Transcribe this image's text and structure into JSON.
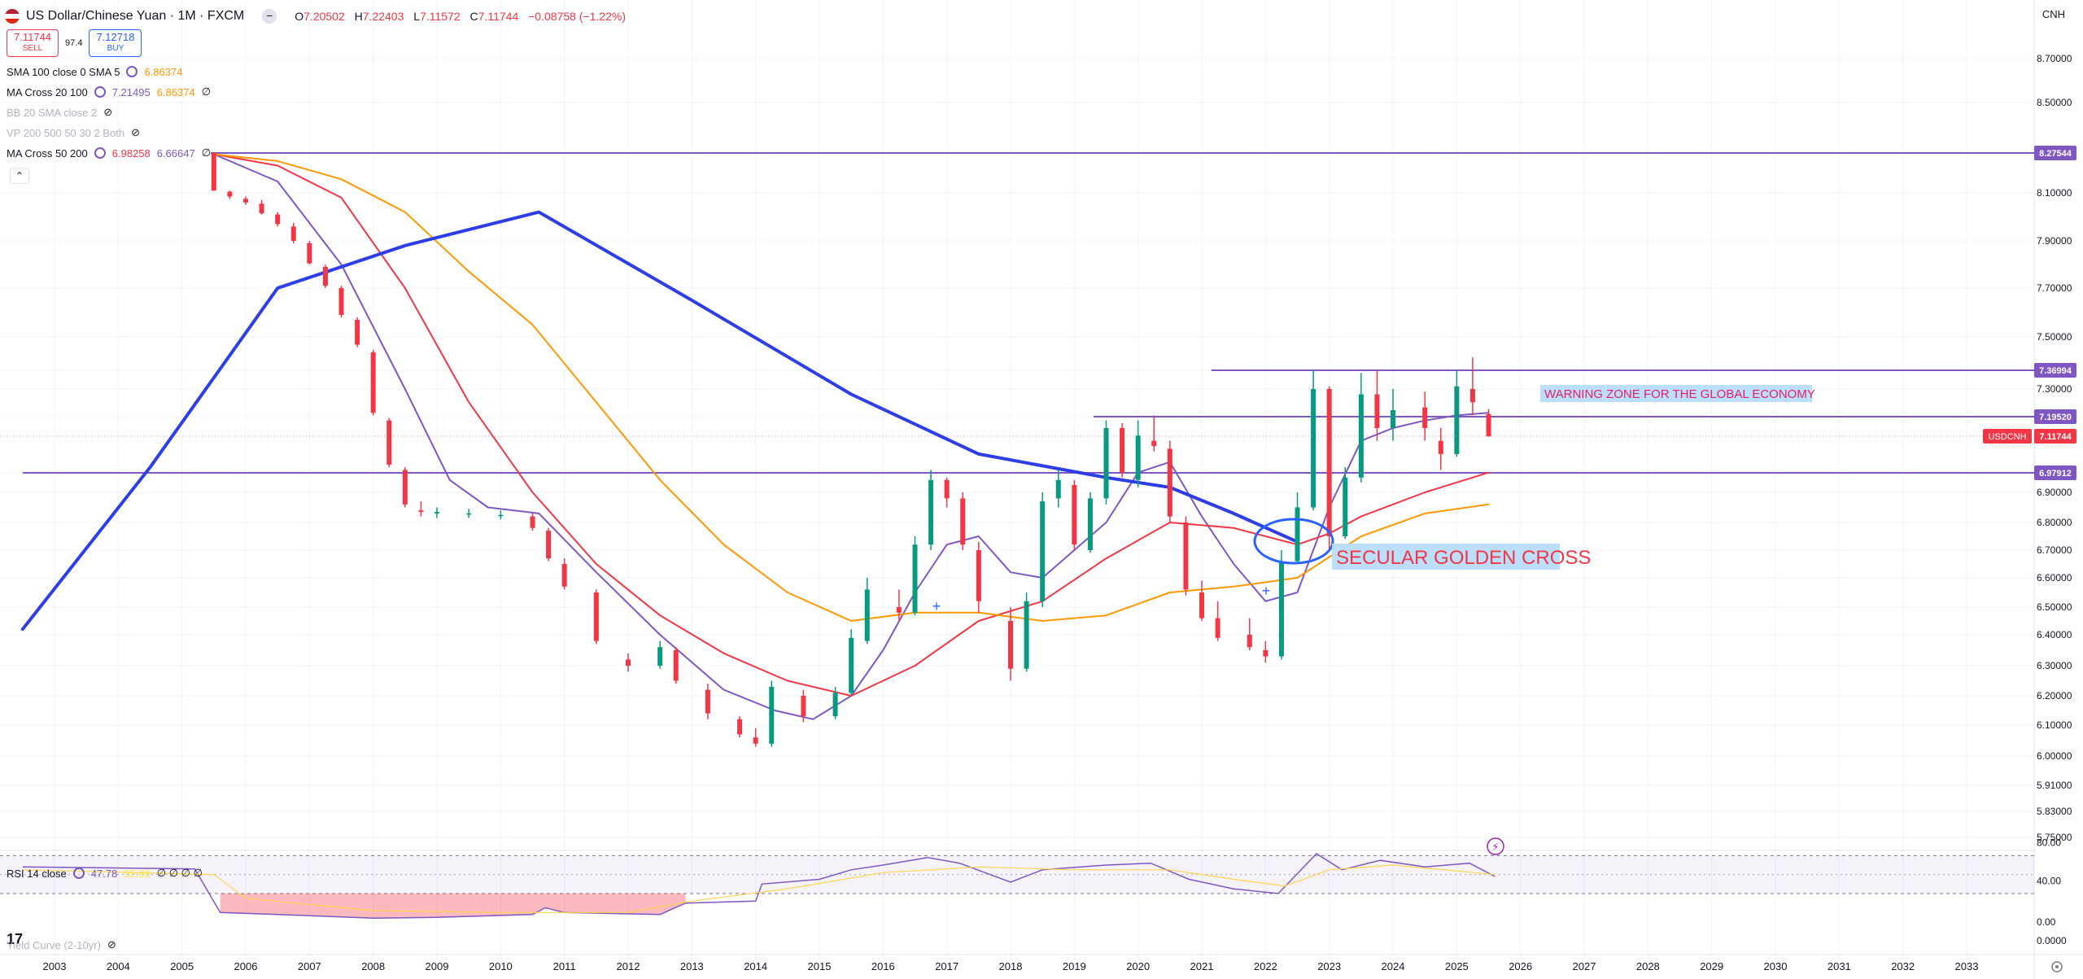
{
  "header": {
    "symbol_title": "US Dollar/Chinese Yuan · 1M · FXCM",
    "ohlc": {
      "o_label": "O",
      "o": "7.20502",
      "h_label": "H",
      "h": "7.22403",
      "l_label": "L",
      "l": "7.11572",
      "c_label": "C",
      "c": "7.11744",
      "change": "−0.08758 (−1.22%)"
    },
    "sell_price": "7.11744",
    "sell_label": "SELL",
    "spread": "97.4",
    "buy_price": "7.12718",
    "buy_label": "BUY",
    "currency": "CNH"
  },
  "indicators": [
    {
      "label": "SMA 100 close 0 SMA 5",
      "values": [
        {
          "text": "6.86374",
          "color": "#ff9800"
        }
      ],
      "dim": false
    },
    {
      "label": "MA Cross 20 100",
      "values": [
        {
          "text": "7.21495",
          "color": "#7e57c2"
        },
        {
          "text": "6.86374",
          "color": "#ff9800"
        },
        {
          "text": "∅",
          "color": "#131722"
        }
      ],
      "dim": false
    },
    {
      "label": "BB 20 SMA close 2",
      "values": [],
      "dim": true
    },
    {
      "label": "VP 200 500 50 30 2 Both",
      "values": [],
      "dim": true
    },
    {
      "label": "MA Cross 50 200",
      "values": [
        {
          "text": "6.98258",
          "color": "#f23645"
        },
        {
          "text": "6.66647",
          "color": "#7e57c2"
        },
        {
          "text": "∅",
          "color": "#131722"
        }
      ],
      "dim": false
    }
  ],
  "rsi_panel": {
    "label": "RSI 14 close",
    "value": "47.78",
    "value2": "55.93",
    "extras": "∅ ∅ ∅ ∅",
    "yield_label": "Yield Curve (2-10yr)"
  },
  "annotations": {
    "warning_zone": "WARNING ZONE FOR THE GLOBAL ECONOMY",
    "golden_cross": "SECULAR GOLDEN CROSS"
  },
  "price_badges": [
    {
      "text": "8.27544",
      "value": 8.27544,
      "color": "#7e57c2"
    },
    {
      "text": "7.36994",
      "value": 7.36994,
      "color": "#7e57c2"
    },
    {
      "text": "7.19520",
      "value": 7.1952,
      "color": "#7e57c2"
    },
    {
      "text": "USDCNH",
      "value": 7.11744,
      "color": "#f23645",
      "offset": -1
    },
    {
      "text": "7.11744",
      "value": 7.11744,
      "color": "#f23645"
    },
    {
      "text": "6.97912",
      "value": 6.97912,
      "color": "#7e57c2"
    }
  ],
  "colors": {
    "up": "#089981",
    "down": "#f23645",
    "hline": "#7e57c2",
    "ma_fast": "#7e57c2",
    "ma_50": "#f23645",
    "ma_100": "#ff9800",
    "ma_200_thick": "#2e3ee6"
  },
  "chart_data": {
    "type": "candlestick",
    "title": "US Dollar/Chinese Yuan · 1M · FXCM",
    "y_ticks": [
      "8.70000",
      "8.50000",
      "8.27544",
      "8.10000",
      "7.90000",
      "7.70000",
      "7.50000",
      "7.36994",
      "7.30000",
      "7.19520",
      "7.11744",
      "6.97912",
      "6.90000",
      "6.80000",
      "6.70000",
      "6.60000",
      "6.50000",
      "6.40000",
      "6.30000",
      "6.20000",
      "6.10000",
      "6.00000",
      "5.91000",
      "5.83000",
      "5.75000"
    ],
    "x_ticks": [
      "2003",
      "2004",
      "2005",
      "2006",
      "2007",
      "2008",
      "2009",
      "2010",
      "2011",
      "2012",
      "2013",
      "2014",
      "2015",
      "2016",
      "2017",
      "2018",
      "2019",
      "2020",
      "2021",
      "2022",
      "2023",
      "2024",
      "2025",
      "2026",
      "2027",
      "2028",
      "2029",
      "2030",
      "2031",
      "2032",
      "2033"
    ],
    "x_range_years": [
      2002.5,
      2033.8
    ],
    "price_axis_labels_shown": [
      "8.70000",
      "8.50000",
      "8.10000",
      "7.90000",
      "7.70000",
      "7.50000",
      "7.30000",
      "6.90000",
      "6.80000",
      "6.70000",
      "6.60000",
      "6.50000",
      "6.40000",
      "6.30000",
      "6.20000",
      "6.10000",
      "6.00000",
      "5.91000",
      "5.83000",
      "5.75000"
    ],
    "rsi_ticks": [
      "80.00",
      "40.00",
      "0.00",
      "0.0000"
    ],
    "horizontal_lines": [
      {
        "price": 8.27544,
        "from": 2002.5,
        "to": 2033.8
      },
      {
        "price": 7.36994,
        "from": 2021.15,
        "to": 2033.8
      },
      {
        "price": 7.1952,
        "from": 2019.3,
        "to": 2033.8
      },
      {
        "price": 6.97912,
        "from": 2002.5,
        "to": 2033.8
      }
    ],
    "candles": [
      [
        "2005.5",
        8.277,
        8.277,
        8.11,
        8.11
      ],
      [
        "2005.75",
        8.105,
        8.11,
        8.075,
        8.085
      ],
      [
        "2006.0",
        8.075,
        8.085,
        8.05,
        8.06
      ],
      [
        "2006.25",
        8.055,
        8.07,
        8.01,
        8.015
      ],
      [
        "2006.5",
        8.01,
        8.02,
        7.96,
        7.97
      ],
      [
        "2006.75",
        7.96,
        7.975,
        7.89,
        7.9
      ],
      [
        "2007.0",
        7.89,
        7.9,
        7.8,
        7.805
      ],
      [
        "2007.25",
        7.79,
        7.8,
        7.7,
        7.71
      ],
      [
        "2007.5",
        7.7,
        7.71,
        7.58,
        7.59
      ],
      [
        "2007.75",
        7.57,
        7.58,
        7.46,
        7.47
      ],
      [
        "2008.0",
        7.44,
        7.45,
        7.2,
        7.21
      ],
      [
        "2008.25",
        7.18,
        7.19,
        7.0,
        7.01
      ],
      [
        "2008.5",
        6.99,
        7.0,
        6.85,
        6.86
      ],
      [
        "2008.75",
        6.84,
        6.87,
        6.82,
        6.835
      ],
      [
        "2009.0",
        6.83,
        6.85,
        6.815,
        6.835
      ],
      [
        "2009.5",
        6.83,
        6.845,
        6.815,
        6.83
      ],
      [
        "2010.0",
        6.825,
        6.84,
        6.81,
        6.825
      ],
      [
        "2010.5",
        6.82,
        6.83,
        6.77,
        6.78
      ],
      [
        "2010.75",
        6.77,
        6.78,
        6.66,
        6.67
      ],
      [
        "2011.0",
        6.65,
        6.67,
        6.56,
        6.57
      ],
      [
        "2011.5",
        6.55,
        6.56,
        6.37,
        6.38
      ],
      [
        "2012.0",
        6.32,
        6.34,
        6.28,
        6.3
      ],
      [
        "2012.5",
        6.3,
        6.38,
        6.29,
        6.36
      ],
      [
        "2012.75",
        6.35,
        6.36,
        6.24,
        6.25
      ],
      [
        "2013.25",
        6.22,
        6.24,
        6.12,
        6.14
      ],
      [
        "2013.75",
        6.12,
        6.13,
        6.06,
        6.07
      ],
      [
        "2014.0",
        6.06,
        6.09,
        6.03,
        6.04
      ],
      [
        "2014.25",
        6.04,
        6.25,
        6.03,
        6.23
      ],
      [
        "2014.75",
        6.2,
        6.22,
        6.11,
        6.13
      ],
      [
        "2015.25",
        6.13,
        6.23,
        6.12,
        6.21
      ],
      [
        "2015.5",
        6.21,
        6.42,
        6.2,
        6.39
      ],
      [
        "2015.75",
        6.38,
        6.6,
        6.37,
        6.56
      ],
      [
        "2016.25",
        6.5,
        6.56,
        6.45,
        6.48
      ],
      [
        "2016.5",
        6.48,
        6.75,
        6.47,
        6.72
      ],
      [
        "2016.75",
        6.72,
        6.99,
        6.7,
        6.95
      ],
      [
        "2017.0",
        6.95,
        6.96,
        6.85,
        6.88
      ],
      [
        "2017.25",
        6.88,
        6.9,
        6.7,
        6.72
      ],
      [
        "2017.5",
        6.7,
        6.73,
        6.48,
        6.52
      ],
      [
        "2018.0",
        6.45,
        6.5,
        6.25,
        6.29
      ],
      [
        "2018.25",
        6.29,
        6.55,
        6.28,
        6.52
      ],
      [
        "2018.5",
        6.52,
        6.9,
        6.5,
        6.87
      ],
      [
        "2018.75",
        6.88,
        6.99,
        6.85,
        6.95
      ],
      [
        "2019.0",
        6.93,
        6.95,
        6.7,
        6.72
      ],
      [
        "2019.25",
        6.7,
        6.9,
        6.69,
        6.88
      ],
      [
        "2019.5",
        6.88,
        7.18,
        6.86,
        7.15
      ],
      [
        "2019.75",
        7.15,
        7.17,
        6.96,
        6.98
      ],
      [
        "2020.0",
        6.95,
        7.18,
        6.92,
        7.12
      ],
      [
        "2020.25",
        7.1,
        7.2,
        7.06,
        7.08
      ],
      [
        "2020.5",
        7.07,
        7.1,
        6.8,
        6.82
      ],
      [
        "2020.75",
        6.8,
        6.82,
        6.54,
        6.56
      ],
      [
        "2021.0",
        6.55,
        6.59,
        6.45,
        6.46
      ],
      [
        "2021.25",
        6.46,
        6.52,
        6.38,
        6.39
      ],
      [
        "2021.75",
        6.4,
        6.46,
        6.35,
        6.36
      ],
      [
        "2022.0",
        6.35,
        6.38,
        6.31,
        6.33
      ],
      [
        "2022.25",
        6.33,
        6.7,
        6.32,
        6.66
      ],
      [
        "2022.5",
        6.66,
        6.9,
        6.65,
        6.85
      ],
      [
        "2022.75",
        6.85,
        7.37,
        6.84,
        7.3
      ],
      [
        "2023.0",
        7.3,
        7.31,
        6.7,
        6.75
      ],
      [
        "2023.25",
        6.75,
        7.0,
        6.74,
        6.96
      ],
      [
        "2023.5",
        6.96,
        7.36,
        6.94,
        7.28
      ],
      [
        "2023.75",
        7.28,
        7.37,
        7.1,
        7.15
      ],
      [
        "2024.0",
        7.15,
        7.3,
        7.1,
        7.22
      ],
      [
        "2024.5",
        7.23,
        7.29,
        7.1,
        7.15
      ],
      [
        "2024.75",
        7.1,
        7.15,
        6.99,
        7.05
      ],
      [
        "2025.0",
        7.05,
        7.37,
        7.04,
        7.31
      ],
      [
        "2025.25",
        7.3,
        7.42,
        7.2,
        7.25
      ],
      [
        "2025.5",
        7.205,
        7.224,
        7.116,
        7.117
      ]
    ],
    "series": [
      {
        "name": "MA Cross 20 100 (fast)",
        "color": "#7e57c2",
        "width": 2,
        "points": [
          [
            2005.5,
            8.27
          ],
          [
            2006.5,
            8.15
          ],
          [
            2007.5,
            7.8
          ],
          [
            2008.5,
            7.3
          ],
          [
            2009.2,
            6.95
          ],
          [
            2009.8,
            6.85
          ],
          [
            2010.6,
            6.83
          ],
          [
            2011.5,
            6.62
          ],
          [
            2012.5,
            6.4
          ],
          [
            2013.5,
            6.22
          ],
          [
            2014.3,
            6.15
          ],
          [
            2014.9,
            6.12
          ],
          [
            2015.5,
            6.2
          ],
          [
            2016.0,
            6.35
          ],
          [
            2016.5,
            6.55
          ],
          [
            2017.0,
            6.72
          ],
          [
            2017.5,
            6.75
          ],
          [
            2018.0,
            6.62
          ],
          [
            2018.5,
            6.6
          ],
          [
            2019.0,
            6.7
          ],
          [
            2019.5,
            6.8
          ],
          [
            2020.0,
            6.98
          ],
          [
            2020.5,
            7.02
          ],
          [
            2021.0,
            6.82
          ],
          [
            2021.5,
            6.65
          ],
          [
            2022.0,
            6.52
          ],
          [
            2022.5,
            6.55
          ],
          [
            2023.0,
            6.85
          ],
          [
            2023.5,
            7.1
          ],
          [
            2024.0,
            7.15
          ],
          [
            2024.5,
            7.18
          ],
          [
            2025.0,
            7.2
          ],
          [
            2025.5,
            7.21
          ]
        ]
      },
      {
        "name": "MA Cross 50 200 (50)",
        "color": "#f23645",
        "width": 2,
        "points": [
          [
            2005.5,
            8.27
          ],
          [
            2006.5,
            8.22
          ],
          [
            2007.5,
            8.08
          ],
          [
            2008.5,
            7.7
          ],
          [
            2009.5,
            7.25
          ],
          [
            2010.5,
            6.9
          ],
          [
            2011.5,
            6.65
          ],
          [
            2012.5,
            6.47
          ],
          [
            2013.5,
            6.34
          ],
          [
            2014.5,
            6.25
          ],
          [
            2015.5,
            6.2
          ],
          [
            2016.5,
            6.3
          ],
          [
            2017.5,
            6.45
          ],
          [
            2018.5,
            6.52
          ],
          [
            2019.5,
            6.67
          ],
          [
            2020.5,
            6.8
          ],
          [
            2021.5,
            6.78
          ],
          [
            2022.5,
            6.72
          ],
          [
            2023.0,
            6.76
          ],
          [
            2023.5,
            6.82
          ],
          [
            2024.0,
            6.86
          ],
          [
            2024.5,
            6.9
          ],
          [
            2025.5,
            6.98
          ]
        ]
      },
      {
        "name": "SMA 100",
        "color": "#ff9800",
        "width": 2,
        "points": [
          [
            2005.5,
            8.27
          ],
          [
            2006.5,
            8.24
          ],
          [
            2007.5,
            8.16
          ],
          [
            2008.5,
            8.02
          ],
          [
            2009.5,
            7.77
          ],
          [
            2010.5,
            7.55
          ],
          [
            2011.5,
            7.25
          ],
          [
            2012.5,
            6.95
          ],
          [
            2013.5,
            6.72
          ],
          [
            2014.5,
            6.55
          ],
          [
            2015.5,
            6.45
          ],
          [
            2016.5,
            6.48
          ],
          [
            2017.5,
            6.48
          ],
          [
            2018.5,
            6.45
          ],
          [
            2019.5,
            6.47
          ],
          [
            2020.5,
            6.55
          ],
          [
            2021.5,
            6.57
          ],
          [
            2022.5,
            6.6
          ],
          [
            2023.5,
            6.75
          ],
          [
            2024.5,
            6.83
          ],
          [
            2025.5,
            6.86
          ]
        ]
      },
      {
        "name": "MA 200 (thick)",
        "color": "#2e3ee6",
        "width": 4,
        "points": [
          [
            2002.5,
            6.42
          ],
          [
            2004.5,
            7.0
          ],
          [
            2006.5,
            7.7
          ],
          [
            2008.5,
            7.88
          ],
          [
            2010.6,
            8.02
          ],
          [
            2013.0,
            7.65
          ],
          [
            2015.5,
            7.28
          ],
          [
            2017.5,
            7.05
          ],
          [
            2019.5,
            6.96
          ],
          [
            2020.5,
            6.92
          ],
          [
            2021.5,
            6.83
          ],
          [
            2022.5,
            6.73
          ]
        ]
      }
    ],
    "rsi": {
      "overbought": 70,
      "oversold": 30,
      "mid": 50,
      "ylim": [
        0,
        90
      ]
    }
  }
}
